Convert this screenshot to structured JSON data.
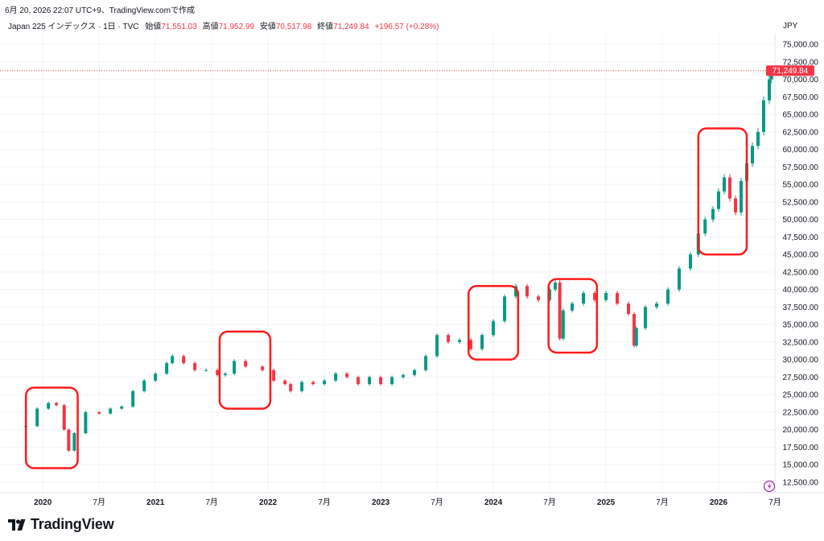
{
  "header": {
    "datetime": "6月 20, 2026 22:07 UTC+9、TradingView.comで作成",
    "symbol_line": "Japan 225 インデックス · 1日 · TVC",
    "ohlc": [
      {
        "label": "始値",
        "value": "71,551.03"
      },
      {
        "label": "高値",
        "value": "71,952.99"
      },
      {
        "label": "安値",
        "value": "70,517.98"
      },
      {
        "label": "終値",
        "value": "71,249.84"
      }
    ],
    "change": "+196.57 (+0.28%)"
  },
  "currency": "JPY",
  "last_price_label": "71,249.84",
  "brand": "TradingView",
  "colors": {
    "up": "#089981",
    "down": "#f23645",
    "highlight": "#ff1a1a",
    "grid": "#f0f3fa",
    "text": "#131722"
  },
  "chart_data": {
    "type": "line",
    "style": "candlestick",
    "instrument": "Japan 225",
    "timeframe": "1日",
    "x": [
      2019.85,
      2019.95,
      2020.05,
      2020.12,
      2020.19,
      2020.23,
      2020.28,
      2020.38,
      2020.5,
      2020.6,
      2020.7,
      2020.8,
      2020.9,
      2021.0,
      2021.1,
      2021.15,
      2021.25,
      2021.35,
      2021.45,
      2021.55,
      2021.62,
      2021.7,
      2021.8,
      2021.95,
      2022.05,
      2022.15,
      2022.2,
      2022.3,
      2022.4,
      2022.5,
      2022.6,
      2022.7,
      2022.8,
      2022.9,
      2023.0,
      2023.1,
      2023.2,
      2023.3,
      2023.4,
      2023.5,
      2023.6,
      2023.7,
      2023.8,
      2023.9,
      2024.0,
      2024.1,
      2024.2,
      2024.3,
      2024.4,
      2024.5,
      2024.55,
      2024.59,
      2024.62,
      2024.7,
      2024.8,
      2024.9,
      2025.0,
      2025.1,
      2025.2,
      2025.25,
      2025.27,
      2025.35,
      2025.45,
      2025.55,
      2025.65,
      2025.75,
      2025.82,
      2025.88,
      2025.95,
      2026.0,
      2026.05,
      2026.1,
      2026.15,
      2026.2,
      2026.25,
      2026.3,
      2026.35,
      2026.4,
      2026.45,
      2026.47
    ],
    "values": [
      20500,
      23000,
      23800,
      23500,
      20000,
      17000,
      19500,
      22500,
      22300,
      23000,
      23300,
      25500,
      27000,
      28000,
      29500,
      30500,
      29500,
      28500,
      28500,
      27800,
      28000,
      29800,
      29000,
      28500,
      27000,
      26500,
      25500,
      26800,
      26500,
      27000,
      28000,
      27500,
      26500,
      27500,
      26500,
      27500,
      27800,
      28500,
      30500,
      33500,
      32500,
      32800,
      31500,
      33500,
      35500,
      39000,
      40500,
      39000,
      38500,
      40000,
      41000,
      33000,
      37000,
      38000,
      39500,
      38500,
      39500,
      38000,
      36500,
      32000,
      34500,
      37500,
      38000,
      40000,
      43000,
      45000,
      48000,
      50000,
      51500,
      54000,
      56000,
      53000,
      51000,
      55500,
      58000,
      60500,
      62500,
      67000,
      70000,
      71250
    ],
    "xlim": [
      2019.62,
      2026.5
    ],
    "ylim": [
      11000,
      76500
    ],
    "y_ticks": [
      "12,500.00",
      "15,000.00",
      "17,500.00",
      "20,000.00",
      "22,500.00",
      "25,000.00",
      "27,500.00",
      "30,000.00",
      "32,500.00",
      "35,000.00",
      "37,500.00",
      "40,000.00",
      "42,500.00",
      "45,000.00",
      "47,500.00",
      "50,000.00",
      "52,500.00",
      "55,000.00",
      "57,500.00",
      "60,000.00",
      "62,500.00",
      "65,000.00",
      "67,500.00",
      "70,000.00",
      "72,500.00",
      "75,000.00"
    ],
    "x_ticks": [
      {
        "label": "2020",
        "t": 2020.0,
        "bold": true
      },
      {
        "label": "7月",
        "t": 2020.5,
        "bold": false
      },
      {
        "label": "2021",
        "t": 2021.0,
        "bold": true
      },
      {
        "label": "7月",
        "t": 2021.5,
        "bold": false
      },
      {
        "label": "2022",
        "t": 2022.0,
        "bold": true
      },
      {
        "label": "7月",
        "t": 2022.5,
        "bold": false
      },
      {
        "label": "2023",
        "t": 2023.0,
        "bold": true
      },
      {
        "label": "7月",
        "t": 2023.5,
        "bold": false
      },
      {
        "label": "2024",
        "t": 2024.0,
        "bold": true
      },
      {
        "label": "7月",
        "t": 2024.5,
        "bold": false
      },
      {
        "label": "2025",
        "t": 2025.0,
        "bold": true
      },
      {
        "label": "7月",
        "t": 2025.5,
        "bold": false
      },
      {
        "label": "2026",
        "t": 2026.0,
        "bold": true
      },
      {
        "label": "7月",
        "t": 2026.5,
        "bold": false
      }
    ],
    "last_price": 71249.84,
    "highlights": [
      {
        "x0": 2019.85,
        "x1": 2020.31,
        "y0": 14500,
        "y1": 26000
      },
      {
        "x0": 2021.57,
        "x1": 2022.02,
        "y0": 23000,
        "y1": 34000
      },
      {
        "x0": 2023.78,
        "x1": 2024.22,
        "y0": 30000,
        "y1": 40500
      },
      {
        "x0": 2024.49,
        "x1": 2024.92,
        "y0": 31000,
        "y1": 41500
      },
      {
        "x0": 2025.82,
        "x1": 2026.25,
        "y0": 45000,
        "y1": 63000
      }
    ],
    "grid": true
  }
}
